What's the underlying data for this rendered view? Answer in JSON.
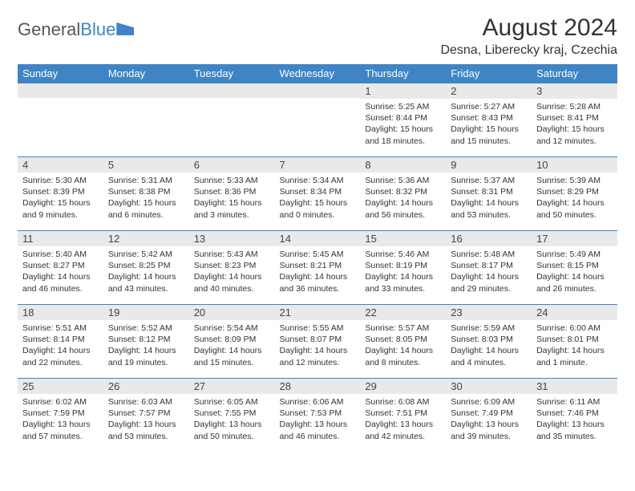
{
  "logo": {
    "text1": "General",
    "text2": "Blue"
  },
  "header": {
    "title": "August 2024",
    "location": "Desna, Liberecky kraj, Czechia"
  },
  "colors": {
    "accent": "#3f84c4",
    "row_band": "#e9e9e9",
    "bg": "#ffffff",
    "text": "#333333"
  },
  "day_labels": [
    "Sunday",
    "Monday",
    "Tuesday",
    "Wednesday",
    "Thursday",
    "Friday",
    "Saturday"
  ],
  "weeks": [
    [
      null,
      null,
      null,
      null,
      {
        "n": "1",
        "sunrise": "5:25 AM",
        "sunset": "8:44 PM",
        "daylight": "15 hours and 18 minutes."
      },
      {
        "n": "2",
        "sunrise": "5:27 AM",
        "sunset": "8:43 PM",
        "daylight": "15 hours and 15 minutes."
      },
      {
        "n": "3",
        "sunrise": "5:28 AM",
        "sunset": "8:41 PM",
        "daylight": "15 hours and 12 minutes."
      }
    ],
    [
      {
        "n": "4",
        "sunrise": "5:30 AM",
        "sunset": "8:39 PM",
        "daylight": "15 hours and 9 minutes."
      },
      {
        "n": "5",
        "sunrise": "5:31 AM",
        "sunset": "8:38 PM",
        "daylight": "15 hours and 6 minutes."
      },
      {
        "n": "6",
        "sunrise": "5:33 AM",
        "sunset": "8:36 PM",
        "daylight": "15 hours and 3 minutes."
      },
      {
        "n": "7",
        "sunrise": "5:34 AM",
        "sunset": "8:34 PM",
        "daylight": "15 hours and 0 minutes."
      },
      {
        "n": "8",
        "sunrise": "5:36 AM",
        "sunset": "8:32 PM",
        "daylight": "14 hours and 56 minutes."
      },
      {
        "n": "9",
        "sunrise": "5:37 AM",
        "sunset": "8:31 PM",
        "daylight": "14 hours and 53 minutes."
      },
      {
        "n": "10",
        "sunrise": "5:39 AM",
        "sunset": "8:29 PM",
        "daylight": "14 hours and 50 minutes."
      }
    ],
    [
      {
        "n": "11",
        "sunrise": "5:40 AM",
        "sunset": "8:27 PM",
        "daylight": "14 hours and 46 minutes."
      },
      {
        "n": "12",
        "sunrise": "5:42 AM",
        "sunset": "8:25 PM",
        "daylight": "14 hours and 43 minutes."
      },
      {
        "n": "13",
        "sunrise": "5:43 AM",
        "sunset": "8:23 PM",
        "daylight": "14 hours and 40 minutes."
      },
      {
        "n": "14",
        "sunrise": "5:45 AM",
        "sunset": "8:21 PM",
        "daylight": "14 hours and 36 minutes."
      },
      {
        "n": "15",
        "sunrise": "5:46 AM",
        "sunset": "8:19 PM",
        "daylight": "14 hours and 33 minutes."
      },
      {
        "n": "16",
        "sunrise": "5:48 AM",
        "sunset": "8:17 PM",
        "daylight": "14 hours and 29 minutes."
      },
      {
        "n": "17",
        "sunrise": "5:49 AM",
        "sunset": "8:15 PM",
        "daylight": "14 hours and 26 minutes."
      }
    ],
    [
      {
        "n": "18",
        "sunrise": "5:51 AM",
        "sunset": "8:14 PM",
        "daylight": "14 hours and 22 minutes."
      },
      {
        "n": "19",
        "sunrise": "5:52 AM",
        "sunset": "8:12 PM",
        "daylight": "14 hours and 19 minutes."
      },
      {
        "n": "20",
        "sunrise": "5:54 AM",
        "sunset": "8:09 PM",
        "daylight": "14 hours and 15 minutes."
      },
      {
        "n": "21",
        "sunrise": "5:55 AM",
        "sunset": "8:07 PM",
        "daylight": "14 hours and 12 minutes."
      },
      {
        "n": "22",
        "sunrise": "5:57 AM",
        "sunset": "8:05 PM",
        "daylight": "14 hours and 8 minutes."
      },
      {
        "n": "23",
        "sunrise": "5:59 AM",
        "sunset": "8:03 PM",
        "daylight": "14 hours and 4 minutes."
      },
      {
        "n": "24",
        "sunrise": "6:00 AM",
        "sunset": "8:01 PM",
        "daylight": "14 hours and 1 minute."
      }
    ],
    [
      {
        "n": "25",
        "sunrise": "6:02 AM",
        "sunset": "7:59 PM",
        "daylight": "13 hours and 57 minutes."
      },
      {
        "n": "26",
        "sunrise": "6:03 AM",
        "sunset": "7:57 PM",
        "daylight": "13 hours and 53 minutes."
      },
      {
        "n": "27",
        "sunrise": "6:05 AM",
        "sunset": "7:55 PM",
        "daylight": "13 hours and 50 minutes."
      },
      {
        "n": "28",
        "sunrise": "6:06 AM",
        "sunset": "7:53 PM",
        "daylight": "13 hours and 46 minutes."
      },
      {
        "n": "29",
        "sunrise": "6:08 AM",
        "sunset": "7:51 PM",
        "daylight": "13 hours and 42 minutes."
      },
      {
        "n": "30",
        "sunrise": "6:09 AM",
        "sunset": "7:49 PM",
        "daylight": "13 hours and 39 minutes."
      },
      {
        "n": "31",
        "sunrise": "6:11 AM",
        "sunset": "7:46 PM",
        "daylight": "13 hours and 35 minutes."
      }
    ]
  ],
  "labels": {
    "sunrise": "Sunrise:",
    "sunset": "Sunset:",
    "daylight": "Daylight:"
  }
}
